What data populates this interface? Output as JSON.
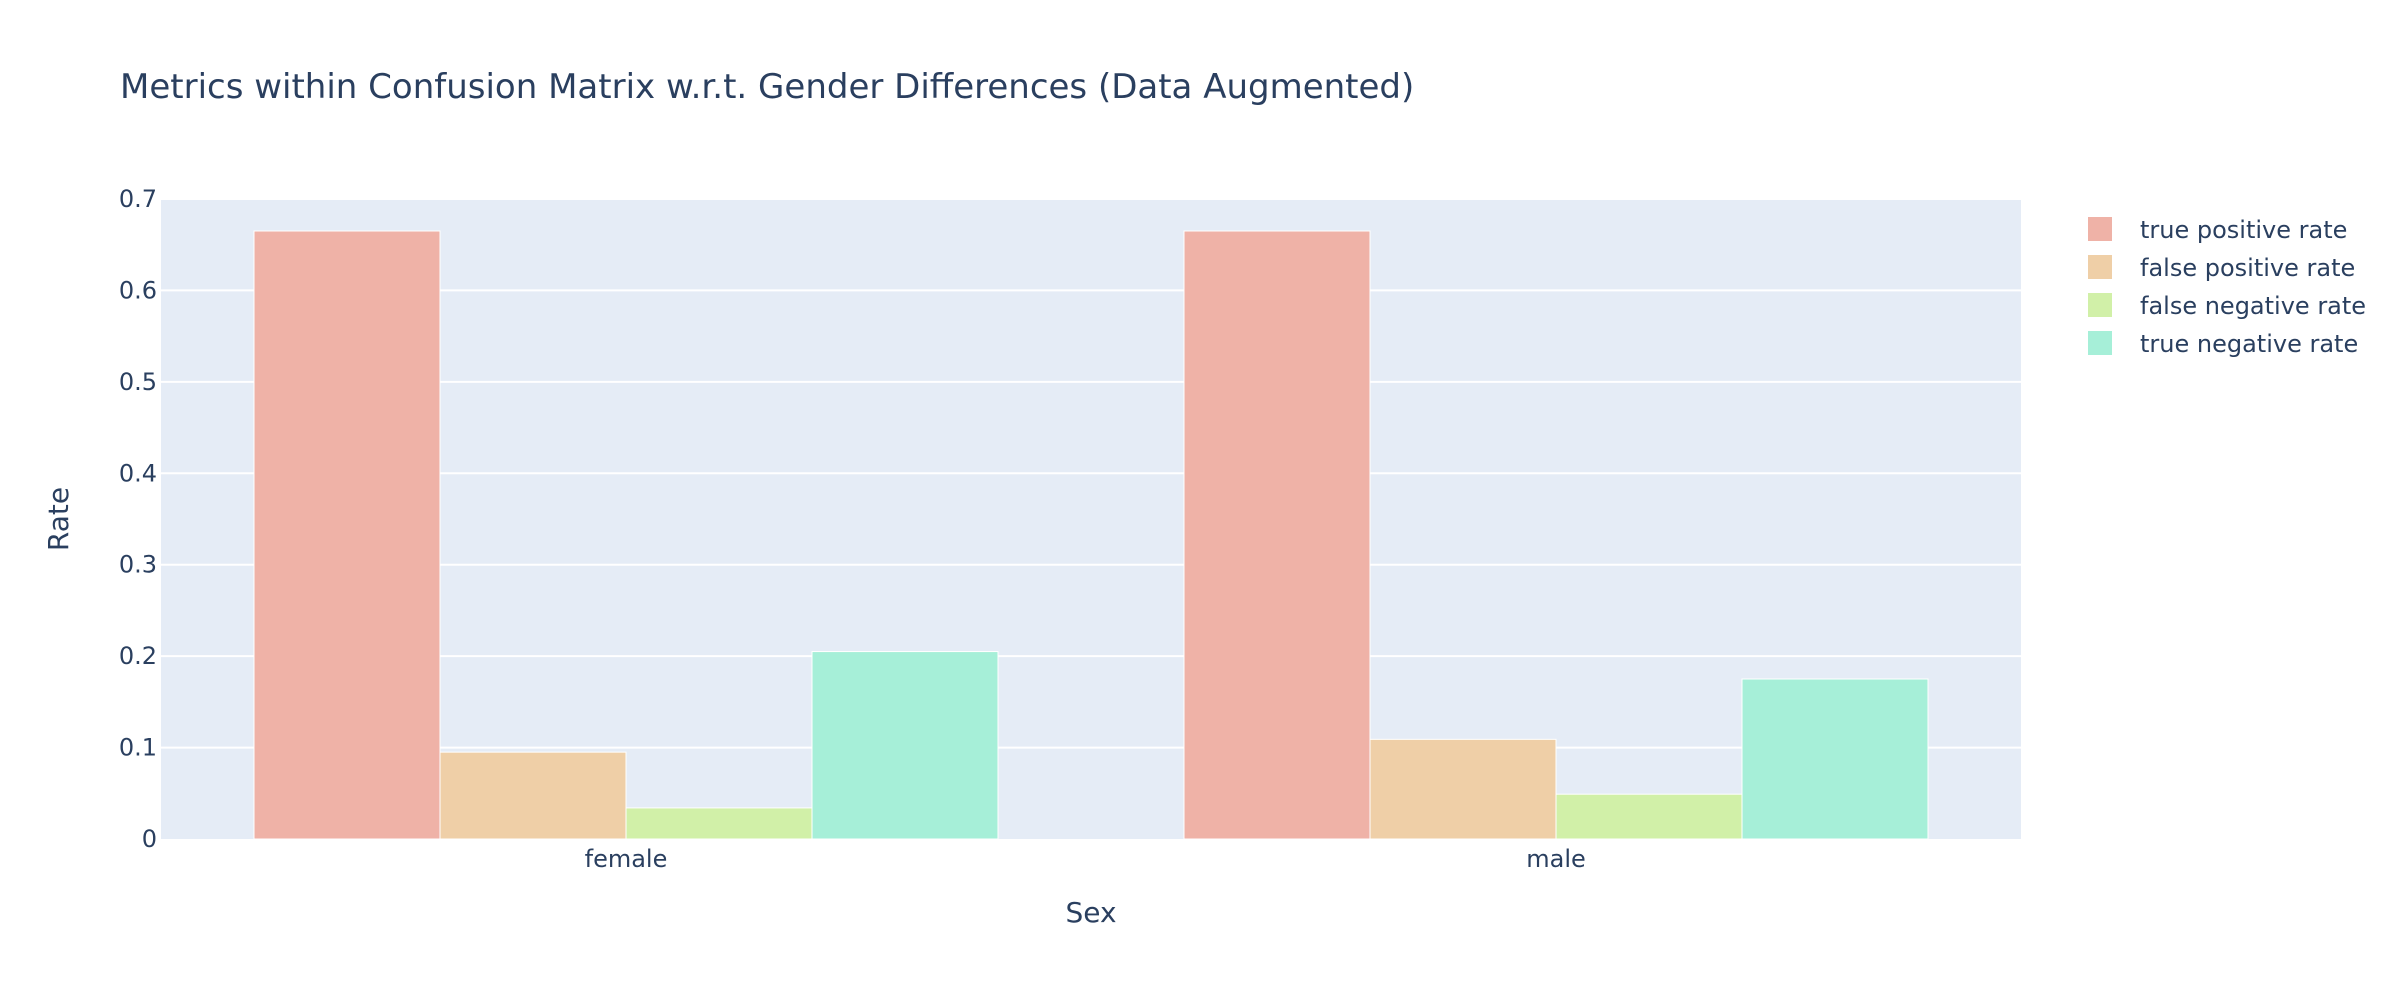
{
  "chart_data": {
    "type": "bar",
    "title": "Metrics within Confusion Matrix w.r.t. Gender Differences (Data Augmented)",
    "xlabel": "Sex",
    "ylabel": "Rate",
    "categories": [
      "female",
      "male"
    ],
    "ylim": [
      0,
      0.7
    ],
    "yticks": [
      0,
      0.1,
      0.2,
      0.3,
      0.4,
      0.5,
      0.6,
      0.7
    ],
    "ytick_labels": [
      "0",
      "0.1",
      "0.2",
      "0.3",
      "0.4",
      "0.5",
      "0.6",
      "0.7"
    ],
    "grid": true,
    "legend_position": "top-right",
    "series": [
      {
        "name": "true positive rate",
        "values": [
          0.665,
          0.665
        ],
        "color": "#EFB2A7"
      },
      {
        "name": "false positive rate",
        "values": [
          0.095,
          0.109
        ],
        "color": "#EFCFA7"
      },
      {
        "name": "false negative rate",
        "values": [
          0.034,
          0.049
        ],
        "color": "#D1F0A8"
      },
      {
        "name": "true negative rate",
        "values": [
          0.205,
          0.175
        ],
        "color": "#A6EFD8"
      }
    ],
    "plot_background": "#E5ECF6",
    "text_color": "#2a3f5f"
  }
}
